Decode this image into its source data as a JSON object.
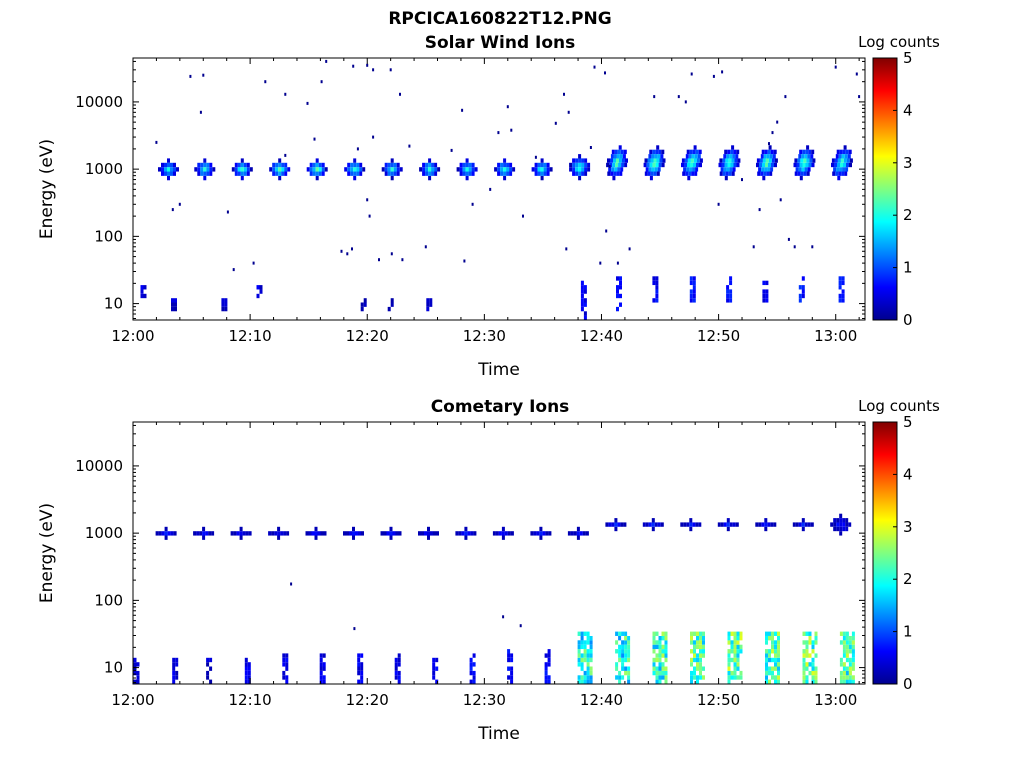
{
  "figure_title": "RPCICA160822T12.PNG",
  "chart_data": [
    {
      "type": "heatmap",
      "title": "Solar Wind Ions",
      "xlabel": "Time",
      "ylabel": "Energy (eV)",
      "y_scale": "log",
      "ylim": [
        5.7,
        45000
      ],
      "x_range_minutes": [
        0,
        62.5
      ],
      "x_ticks": [
        {
          "t": 0,
          "label": "12:00"
        },
        {
          "t": 10,
          "label": "12:10"
        },
        {
          "t": 20,
          "label": "12:20"
        },
        {
          "t": 30,
          "label": "12:30"
        },
        {
          "t": 40,
          "label": "12:40"
        },
        {
          "t": 50,
          "label": "12:50"
        },
        {
          "t": 60,
          "label": "13:00"
        }
      ],
      "y_ticks": [
        {
          "v": 10,
          "label": "10"
        },
        {
          "v": 100,
          "label": "100"
        },
        {
          "v": 1000,
          "label": "1000"
        },
        {
          "v": 10000,
          "label": "10000"
        }
      ],
      "colorbar": {
        "label": "Log counts",
        "min": 0,
        "max": 5,
        "ticks": [
          "0",
          "1",
          "2",
          "3",
          "4",
          "5"
        ],
        "colormap": "jet"
      },
      "grid": false,
      "blobs": [
        {
          "t": 2.9,
          "e_lo": 700,
          "e_hi": 1300,
          "peak": 2.0
        },
        {
          "t": 6.0,
          "e_lo": 700,
          "e_hi": 1300,
          "peak": 2.1
        },
        {
          "t": 9.2,
          "e_lo": 700,
          "e_hi": 1300,
          "peak": 2.2
        },
        {
          "t": 12.4,
          "e_lo": 700,
          "e_hi": 1300,
          "peak": 2.3
        },
        {
          "t": 15.6,
          "e_lo": 700,
          "e_hi": 1300,
          "peak": 2.4
        },
        {
          "t": 18.8,
          "e_lo": 700,
          "e_hi": 1300,
          "peak": 2.2
        },
        {
          "t": 22.0,
          "e_lo": 700,
          "e_hi": 1300,
          "peak": 2.1
        },
        {
          "t": 25.2,
          "e_lo": 700,
          "e_hi": 1300,
          "peak": 2.1
        },
        {
          "t": 28.4,
          "e_lo": 700,
          "e_hi": 1300,
          "peak": 2.0
        },
        {
          "t": 31.6,
          "e_lo": 700,
          "e_hi": 1300,
          "peak": 2.0
        },
        {
          "t": 34.8,
          "e_lo": 700,
          "e_hi": 1300,
          "peak": 2.1
        },
        {
          "t": 38.0,
          "e_lo": 700,
          "e_hi": 1500,
          "peak": 2.2
        },
        {
          "t": 41.2,
          "e_lo": 700,
          "e_hi": 2000,
          "peak": 2.4
        },
        {
          "t": 44.4,
          "e_lo": 700,
          "e_hi": 2000,
          "peak": 2.5
        },
        {
          "t": 47.6,
          "e_lo": 700,
          "e_hi": 2000,
          "peak": 2.5
        },
        {
          "t": 50.8,
          "e_lo": 700,
          "e_hi": 2000,
          "peak": 2.4
        },
        {
          "t": 54.0,
          "e_lo": 700,
          "e_hi": 2000,
          "peak": 2.5
        },
        {
          "t": 57.2,
          "e_lo": 700,
          "e_hi": 2000,
          "peak": 2.4
        },
        {
          "t": 60.4,
          "e_lo": 700,
          "e_hi": 2000,
          "peak": 2.4
        }
      ],
      "low_energy_events": [
        {
          "t": 0.9,
          "e_lo": 13,
          "e_hi": 17,
          "val": 0.4
        },
        {
          "t": 3.5,
          "e_lo": 8,
          "e_hi": 12,
          "val": 0.3
        },
        {
          "t": 7.8,
          "e_lo": 8,
          "e_hi": 12,
          "val": 0.3
        },
        {
          "t": 10.8,
          "e_lo": 13,
          "e_hi": 17,
          "val": 0.4
        },
        {
          "t": 19.7,
          "e_lo": 8,
          "e_hi": 12,
          "val": 0.3
        },
        {
          "t": 22.0,
          "e_lo": 8,
          "e_hi": 12,
          "val": 0.3
        },
        {
          "t": 25.3,
          "e_lo": 8,
          "e_hi": 12,
          "val": 0.3
        },
        {
          "t": 38.5,
          "e_lo": 6,
          "e_hi": 20,
          "val": 0.5
        },
        {
          "t": 41.5,
          "e_lo": 8,
          "e_hi": 25,
          "val": 0.6
        },
        {
          "t": 44.6,
          "e_lo": 12,
          "e_hi": 25,
          "val": 0.6
        },
        {
          "t": 47.8,
          "e_lo": 12,
          "e_hi": 25,
          "val": 0.7
        },
        {
          "t": 50.9,
          "e_lo": 12,
          "e_hi": 25,
          "val": 0.7
        },
        {
          "t": 54.0,
          "e_lo": 12,
          "e_hi": 20,
          "val": 0.5
        },
        {
          "t": 57.1,
          "e_lo": 12,
          "e_hi": 25,
          "val": 0.7
        },
        {
          "t": 60.5,
          "e_lo": 12,
          "e_hi": 25,
          "val": 0.8
        }
      ],
      "scatter_dots": [
        [
          4.9,
          24000
        ],
        [
          6.0,
          25000
        ],
        [
          5.8,
          7000
        ],
        [
          11.3,
          20000
        ],
        [
          13.0,
          13000
        ],
        [
          14.9,
          9500
        ],
        [
          16.1,
          20000
        ],
        [
          16.5,
          40000
        ],
        [
          18.8,
          34000
        ],
        [
          20.0,
          35000
        ],
        [
          20.5,
          30000
        ],
        [
          22.0,
          30000
        ],
        [
          22.8,
          13000
        ],
        [
          28.1,
          7500
        ],
        [
          32.0,
          8500
        ],
        [
          32.3,
          3800
        ],
        [
          36.8,
          13000
        ],
        [
          37.2,
          7000
        ],
        [
          39.4,
          33000
        ],
        [
          40.3,
          27000
        ],
        [
          44.5,
          12000
        ],
        [
          46.6,
          12000
        ],
        [
          47.2,
          10000
        ],
        [
          47.7,
          26000
        ],
        [
          49.6,
          24000
        ],
        [
          50.3,
          28000
        ],
        [
          55.7,
          12000
        ],
        [
          60.0,
          33000
        ],
        [
          61.8,
          26000
        ],
        [
          62.0,
          12000
        ],
        [
          4.0,
          300
        ],
        [
          3.4,
          250
        ],
        [
          8.1,
          230
        ],
        [
          10.3,
          40
        ],
        [
          8.6,
          32
        ],
        [
          17.8,
          60
        ],
        [
          18.3,
          55
        ],
        [
          18.7,
          65
        ],
        [
          21.0,
          45
        ],
        [
          22.1,
          55
        ],
        [
          23.0,
          45
        ],
        [
          25.0,
          70
        ],
        [
          28.3,
          43
        ],
        [
          20.2,
          200
        ],
        [
          20.0,
          350
        ],
        [
          29.0,
          300
        ],
        [
          30.5,
          500
        ],
        [
          33.3,
          200
        ],
        [
          37.0,
          65
        ],
        [
          39.9,
          40
        ],
        [
          40.4,
          120
        ],
        [
          41.4,
          40
        ],
        [
          42.4,
          65
        ],
        [
          52.0,
          700
        ],
        [
          55.3,
          350
        ],
        [
          56.0,
          90
        ],
        [
          56.5,
          70
        ],
        [
          53.0,
          70
        ],
        [
          58.0,
          70
        ],
        [
          50.0,
          300
        ],
        [
          53.5,
          250
        ],
        [
          54.3,
          2400
        ],
        [
          55.0,
          5000
        ],
        [
          54.6,
          3500
        ],
        [
          20.5,
          3000
        ],
        [
          19.2,
          2000
        ],
        [
          23.6,
          2200
        ],
        [
          13.0,
          1600
        ],
        [
          15.5,
          2800
        ],
        [
          31.2,
          3500
        ],
        [
          34.4,
          1500
        ],
        [
          36.1,
          4800
        ],
        [
          2.0,
          2500
        ],
        [
          27.2,
          1900
        ],
        [
          40.7,
          1100
        ],
        [
          39.1,
          2100
        ]
      ]
    },
    {
      "type": "heatmap",
      "title": "Cometary Ions",
      "xlabel": "Time",
      "ylabel": "Energy (eV)",
      "y_scale": "log",
      "ylim": [
        5.7,
        45000
      ],
      "x_range_minutes": [
        0,
        62.5
      ],
      "x_ticks": [
        {
          "t": 0,
          "label": "12:00"
        },
        {
          "t": 10,
          "label": "12:10"
        },
        {
          "t": 20,
          "label": "12:20"
        },
        {
          "t": 30,
          "label": "12:30"
        },
        {
          "t": 40,
          "label": "12:40"
        },
        {
          "t": 50,
          "label": "12:50"
        },
        {
          "t": 60,
          "label": "13:00"
        }
      ],
      "y_ticks": [
        {
          "v": 10,
          "label": "10"
        },
        {
          "v": 100,
          "label": "100"
        },
        {
          "v": 1000,
          "label": "1000"
        },
        {
          "v": 10000,
          "label": "10000"
        }
      ],
      "colorbar": {
        "label": "Log counts",
        "min": 0,
        "max": 5,
        "ticks": [
          "0",
          "1",
          "2",
          "3",
          "4",
          "5"
        ],
        "colormap": "jet"
      },
      "grid": false,
      "blobs": [
        {
          "t": 2.7,
          "e_lo": 850,
          "e_hi": 1150,
          "peak": 0.6
        },
        {
          "t": 5.9,
          "e_lo": 850,
          "e_hi": 1150,
          "peak": 0.6
        },
        {
          "t": 9.1,
          "e_lo": 850,
          "e_hi": 1150,
          "peak": 0.6
        },
        {
          "t": 12.3,
          "e_lo": 850,
          "e_hi": 1150,
          "peak": 0.6
        },
        {
          "t": 15.5,
          "e_lo": 850,
          "e_hi": 1150,
          "peak": 0.6
        },
        {
          "t": 18.7,
          "e_lo": 850,
          "e_hi": 1150,
          "peak": 0.6
        },
        {
          "t": 21.9,
          "e_lo": 850,
          "e_hi": 1150,
          "peak": 0.6
        },
        {
          "t": 25.1,
          "e_lo": 800,
          "e_hi": 1100,
          "peak": 0.6
        },
        {
          "t": 28.3,
          "e_lo": 800,
          "e_hi": 1100,
          "peak": 0.6
        },
        {
          "t": 31.5,
          "e_lo": 800,
          "e_hi": 1100,
          "peak": 0.6
        },
        {
          "t": 34.7,
          "e_lo": 900,
          "e_hi": 1150,
          "peak": 0.6
        },
        {
          "t": 37.9,
          "e_lo": 900,
          "e_hi": 1150,
          "peak": 0.6
        },
        {
          "t": 41.1,
          "e_lo": 1150,
          "e_hi": 1450,
          "peak": 0.7
        },
        {
          "t": 44.3,
          "e_lo": 1150,
          "e_hi": 1450,
          "peak": 0.7
        },
        {
          "t": 47.5,
          "e_lo": 1150,
          "e_hi": 1500,
          "peak": 0.7
        },
        {
          "t": 50.7,
          "e_lo": 1100,
          "e_hi": 1500,
          "peak": 0.7
        },
        {
          "t": 53.9,
          "e_lo": 1150,
          "e_hi": 1600,
          "peak": 0.7
        },
        {
          "t": 57.1,
          "e_lo": 1150,
          "e_hi": 1500,
          "peak": 0.7
        },
        {
          "t": 60.3,
          "e_lo": 1050,
          "e_hi": 1700,
          "peak": 0.7
        }
      ],
      "low_energy_events": [
        {
          "t": 0.3,
          "e_lo": 5.7,
          "e_hi": 13,
          "val": 0.3
        },
        {
          "t": 3.6,
          "e_lo": 5.7,
          "e_hi": 13,
          "val": 0.4
        },
        {
          "t": 6.5,
          "e_lo": 5.7,
          "e_hi": 13,
          "val": 0.3
        },
        {
          "t": 9.8,
          "e_lo": 5.7,
          "e_hi": 13,
          "val": 0.5
        },
        {
          "t": 13.0,
          "e_lo": 5.7,
          "e_hi": 16,
          "val": 0.5
        },
        {
          "t": 16.2,
          "e_lo": 5.7,
          "e_hi": 16,
          "val": 0.5
        },
        {
          "t": 19.4,
          "e_lo": 5.7,
          "e_hi": 16,
          "val": 0.5
        },
        {
          "t": 22.6,
          "e_lo": 5.7,
          "e_hi": 16,
          "val": 0.5
        },
        {
          "t": 25.8,
          "e_lo": 5.7,
          "e_hi": 16,
          "val": 0.5
        },
        {
          "t": 29.0,
          "e_lo": 5.7,
          "e_hi": 16,
          "val": 0.6
        },
        {
          "t": 32.2,
          "e_lo": 5.7,
          "e_hi": 18,
          "val": 0.6
        },
        {
          "t": 35.4,
          "e_lo": 5.7,
          "e_hi": 18,
          "val": 0.6
        },
        {
          "t": 38.6,
          "e_lo": 5.7,
          "e_hi": 30,
          "val": 1.9
        },
        {
          "t": 41.8,
          "e_lo": 5.7,
          "e_hi": 30,
          "val": 2.0
        },
        {
          "t": 45.0,
          "e_lo": 5.7,
          "e_hi": 30,
          "val": 2.1
        },
        {
          "t": 48.2,
          "e_lo": 5.7,
          "e_hi": 30,
          "val": 2.2
        },
        {
          "t": 51.4,
          "e_lo": 5.7,
          "e_hi": 30,
          "val": 2.3
        },
        {
          "t": 54.6,
          "e_lo": 5.7,
          "e_hi": 30,
          "val": 2.2
        },
        {
          "t": 57.8,
          "e_lo": 5.7,
          "e_hi": 30,
          "val": 2.3
        },
        {
          "t": 61.0,
          "e_lo": 5.7,
          "e_hi": 30,
          "val": 2.2
        }
      ],
      "scatter_dots": [
        [
          13.5,
          175
        ],
        [
          18.9,
          38
        ],
        [
          31.6,
          57
        ],
        [
          33.1,
          42
        ]
      ]
    }
  ]
}
